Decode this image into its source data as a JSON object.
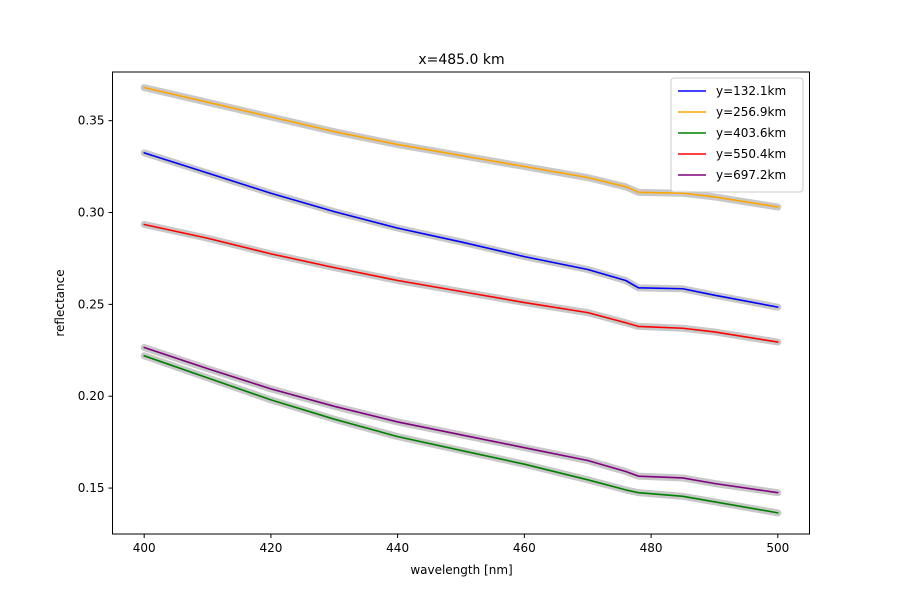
{
  "chart_data": {
    "type": "line",
    "title": "x=485.0 km",
    "xlabel": "wavelength [nm]",
    "ylabel": "reflectance",
    "xlim": [
      395,
      505
    ],
    "ylim": [
      0.125,
      0.3765
    ],
    "xticks": [
      400,
      420,
      440,
      460,
      480,
      500
    ],
    "yticks": [
      0.15,
      0.2,
      0.25,
      0.3,
      0.35
    ],
    "ytick_labels": [
      "0.15",
      "0.20",
      "0.25",
      "0.30",
      "0.35"
    ],
    "grid": false,
    "legend_position": "top-right",
    "uncertainty_band_color": "#c8c8c8",
    "series": [
      {
        "name": "y=132.1km",
        "color": "#0000ff",
        "points": [
          [
            400,
            0.3325
          ],
          [
            410,
            0.3215
          ],
          [
            420,
            0.3105
          ],
          [
            430,
            0.3005
          ],
          [
            440,
            0.2915
          ],
          [
            450,
            0.284
          ],
          [
            460,
            0.276
          ],
          [
            470,
            0.269
          ],
          [
            476,
            0.263
          ],
          [
            478,
            0.259
          ],
          [
            485,
            0.2585
          ],
          [
            490,
            0.255
          ],
          [
            500,
            0.2485
          ]
        ]
      },
      {
        "name": "y=256.9km",
        "color": "#ffa500",
        "points": [
          [
            400,
            0.368
          ],
          [
            410,
            0.36
          ],
          [
            420,
            0.352
          ],
          [
            430,
            0.344
          ],
          [
            440,
            0.337
          ],
          [
            450,
            0.331
          ],
          [
            460,
            0.325
          ],
          [
            470,
            0.319
          ],
          [
            476,
            0.314
          ],
          [
            478,
            0.311
          ],
          [
            485,
            0.3105
          ],
          [
            490,
            0.3085
          ],
          [
            500,
            0.303
          ]
        ]
      },
      {
        "name": "y=403.6km",
        "color": "#008000",
        "points": [
          [
            400,
            0.222
          ],
          [
            410,
            0.21
          ],
          [
            420,
            0.198
          ],
          [
            430,
            0.1875
          ],
          [
            440,
            0.178
          ],
          [
            450,
            0.1705
          ],
          [
            460,
            0.163
          ],
          [
            470,
            0.1545
          ],
          [
            476,
            0.149
          ],
          [
            478,
            0.1475
          ],
          [
            485,
            0.1455
          ],
          [
            490,
            0.1425
          ],
          [
            500,
            0.1365
          ]
        ]
      },
      {
        "name": "y=550.4km",
        "color": "#ff0000",
        "points": [
          [
            400,
            0.2935
          ],
          [
            410,
            0.286
          ],
          [
            420,
            0.2775
          ],
          [
            430,
            0.27
          ],
          [
            440,
            0.263
          ],
          [
            450,
            0.257
          ],
          [
            460,
            0.251
          ],
          [
            470,
            0.2455
          ],
          [
            476,
            0.24
          ],
          [
            478,
            0.238
          ],
          [
            485,
            0.237
          ],
          [
            490,
            0.235
          ],
          [
            500,
            0.2295
          ]
        ]
      },
      {
        "name": "y=697.2km",
        "color": "#800080",
        "points": [
          [
            400,
            0.2265
          ],
          [
            410,
            0.215
          ],
          [
            420,
            0.204
          ],
          [
            430,
            0.1945
          ],
          [
            440,
            0.186
          ],
          [
            450,
            0.179
          ],
          [
            460,
            0.172
          ],
          [
            470,
            0.165
          ],
          [
            476,
            0.159
          ],
          [
            478,
            0.1565
          ],
          [
            485,
            0.1555
          ],
          [
            490,
            0.1525
          ],
          [
            500,
            0.1475
          ]
        ]
      }
    ]
  }
}
